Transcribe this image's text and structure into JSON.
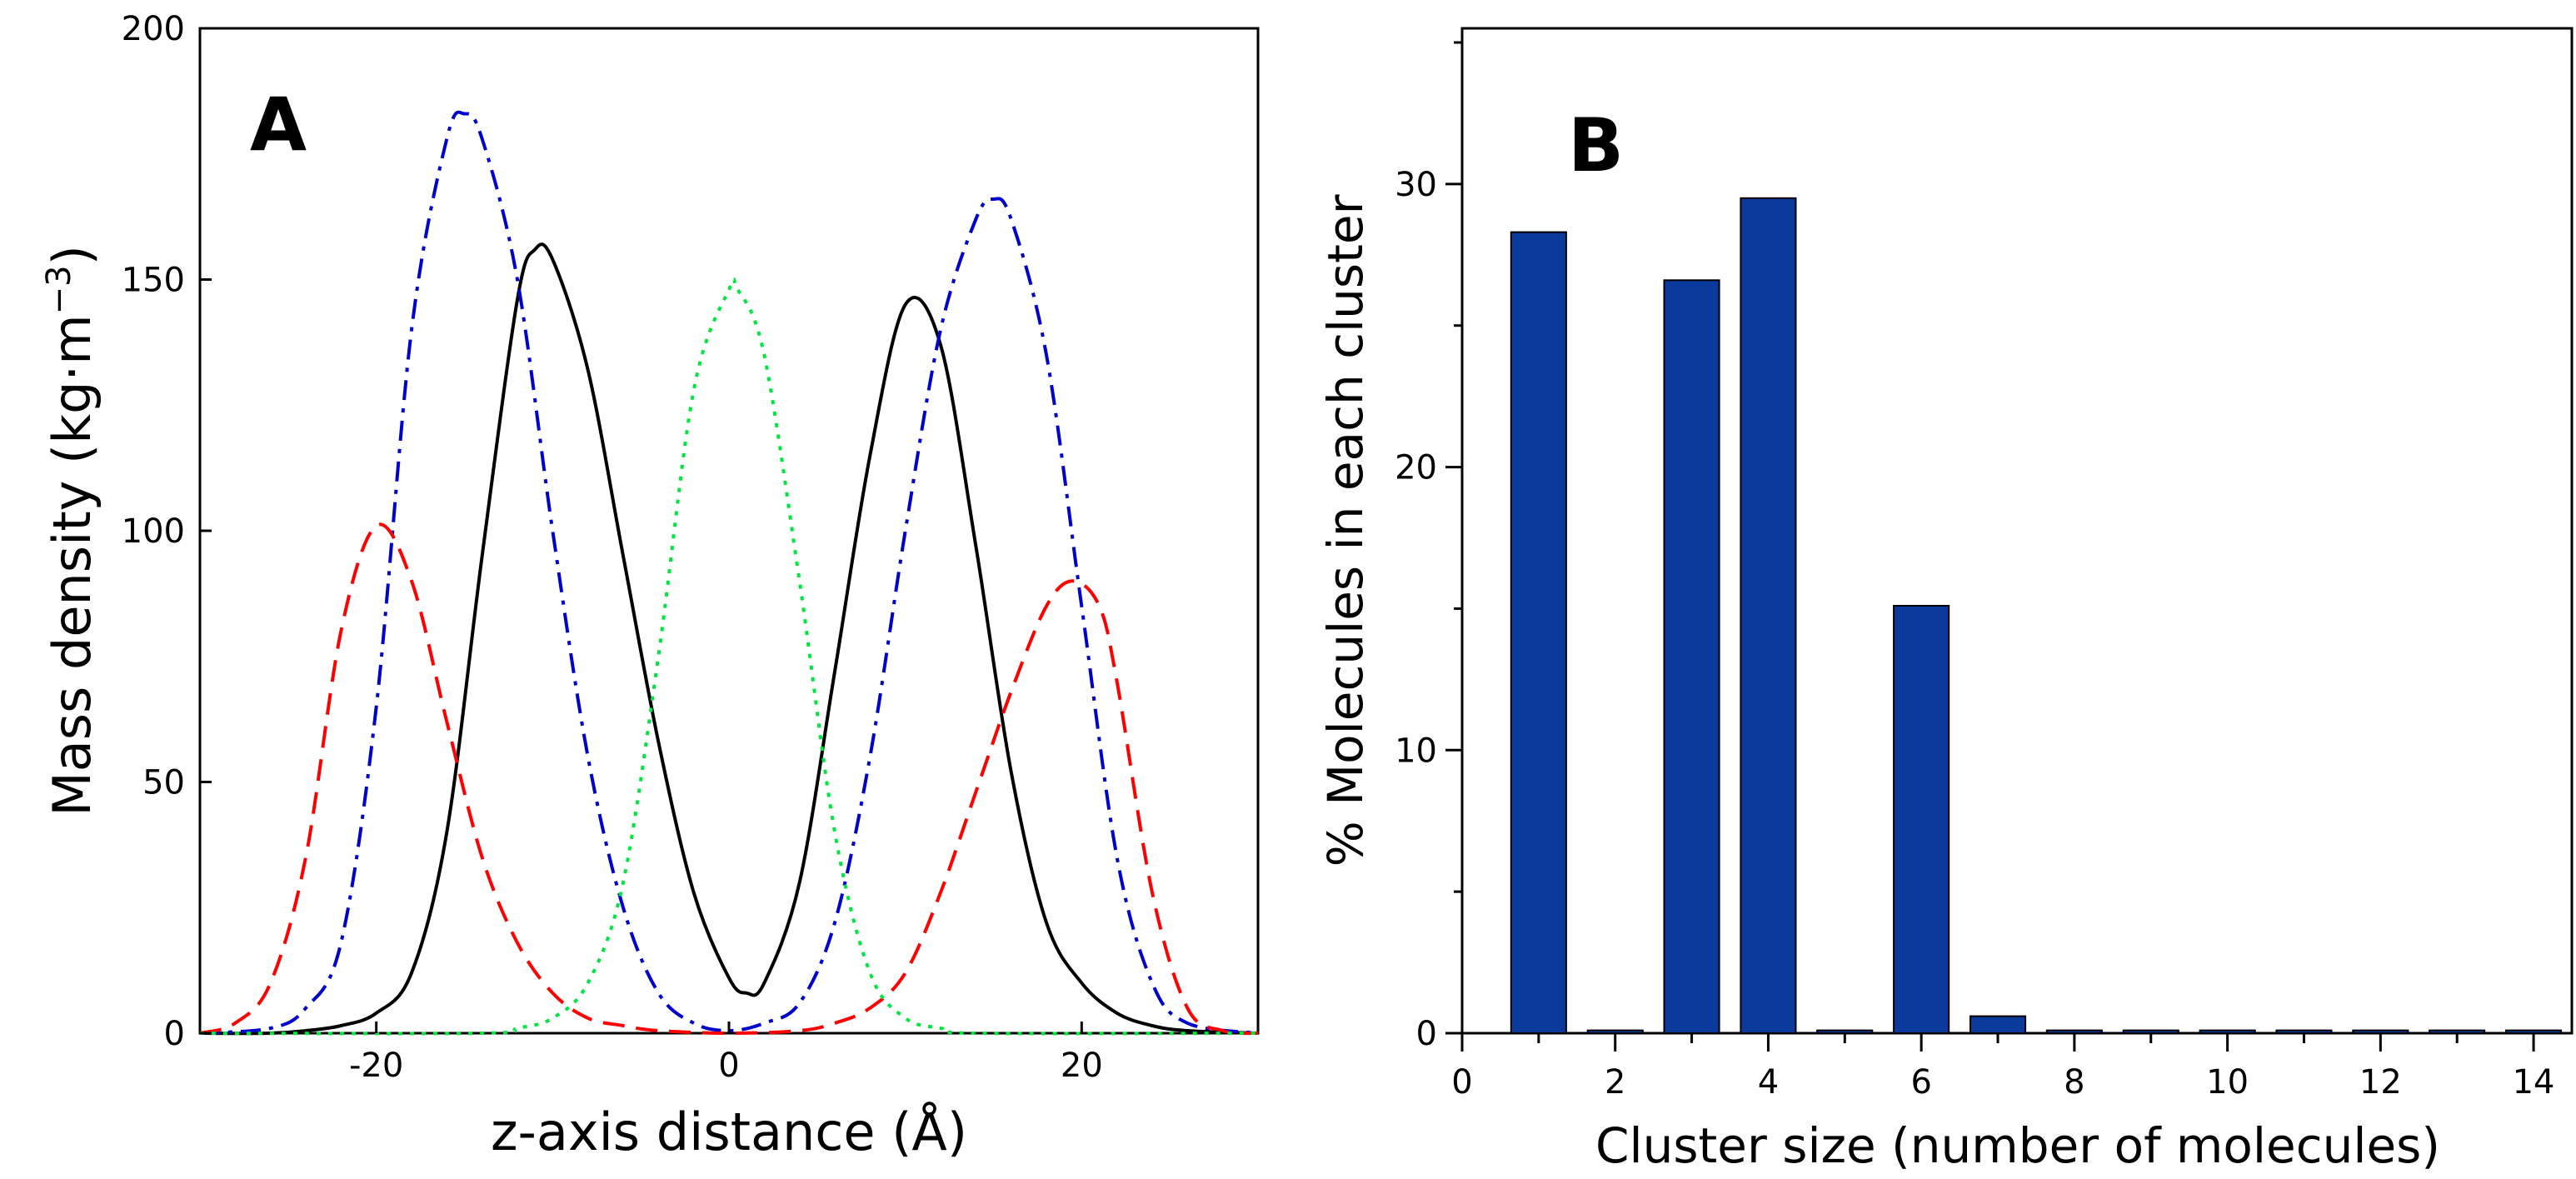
{
  "chart_data": [
    {
      "panel_label": "A",
      "type": "line",
      "xlabel": "z-axis distance (Å)",
      "ylabel": "Mass density (kg·m⁻³)",
      "ylabel_parts": {
        "base": "Mass density (kg·m",
        "sup": "−3",
        "close": ")"
      },
      "xlim": [
        -30,
        30
      ],
      "ylim": [
        0,
        200
      ],
      "x_ticks": [
        -20,
        0,
        20
      ],
      "x_tick_labels": [
        "-20",
        "0",
        "20"
      ],
      "y_ticks": [
        0,
        50,
        100,
        150,
        200
      ],
      "y_tick_labels": [
        "0",
        "50",
        "100",
        "150",
        "200"
      ],
      "grid": false,
      "series": [
        {
          "name": "black-solid",
          "color": "#000000",
          "dash": "solid",
          "x": [
            -30,
            -26,
            -24,
            -22,
            -20,
            -18,
            -16,
            -14,
            -12,
            -11,
            -10,
            -8,
            -6,
            -4,
            -2,
            0,
            1,
            2,
            4,
            6,
            8,
            10,
            12,
            14,
            16,
            18,
            20,
            22,
            24,
            26,
            30
          ],
          "y": [
            0,
            0,
            0.5,
            1.5,
            4,
            12,
            40,
            95,
            146,
            156,
            154,
            132,
            95,
            58,
            28,
            11,
            8,
            10,
            30,
            72,
            115,
            145,
            137,
            97,
            52,
            22,
            10,
            4,
            1.5,
            0.5,
            0
          ]
        },
        {
          "name": "blue-dashdot",
          "color": "#0000cc",
          "dash": "dashdot",
          "x": [
            -30,
            -26,
            -24,
            -22,
            -20,
            -18,
            -16,
            -15,
            -14,
            -12,
            -10,
            -8,
            -6,
            -4,
            -2,
            0,
            2,
            4,
            6,
            8,
            10,
            12,
            14,
            15,
            16,
            18,
            20,
            22,
            24,
            26,
            30
          ],
          "y": [
            0,
            1,
            5,
            18,
            65,
            140,
            178,
            183,
            178,
            150,
            100,
            55,
            25,
            8,
            2,
            0.5,
            2,
            6,
            22,
            55,
            100,
            140,
            162,
            166,
            162,
            135,
            85,
            35,
            10,
            2,
            0
          ]
        },
        {
          "name": "red-dashed",
          "color": "#ff0000",
          "dash": "dashed",
          "x": [
            -30,
            -28,
            -26,
            -24,
            -22,
            -20,
            -18,
            -16,
            -14,
            -12,
            -10,
            -8,
            -6,
            -4,
            0,
            4,
            6,
            8,
            10,
            12,
            14,
            16,
            18,
            19.5,
            21,
            22,
            24,
            26,
            28,
            30
          ],
          "y": [
            0,
            2,
            10,
            35,
            80,
            101,
            90,
            62,
            35,
            18,
            8,
            3,
            1.5,
            0.5,
            0,
            0.5,
            2,
            5,
            12,
            28,
            48,
            68,
            85,
            90,
            85,
            70,
            28,
            5,
            0.5,
            0
          ]
        },
        {
          "name": "green-dotted",
          "color": "#00e640",
          "dash": "dotted",
          "x": [
            -30,
            -14,
            -12,
            -10,
            -8,
            -6,
            -4,
            -2,
            0,
            0.5,
            2,
            4,
            6,
            8,
            10,
            12,
            14,
            30
          ],
          "y": [
            0,
            0,
            1,
            3,
            10,
            30,
            75,
            128,
            148,
            148,
            135,
            90,
            40,
            12,
            3,
            1,
            0,
            0
          ]
        }
      ]
    },
    {
      "panel_label": "B",
      "type": "bar",
      "xlabel": "Cluster size (number of molecules)",
      "ylabel": "% Molecules in each cluster",
      "bar_color": "#0a3a9c",
      "categories": [
        1,
        2,
        3,
        4,
        5,
        6,
        7,
        8,
        9,
        10,
        11,
        12,
        13,
        14
      ],
      "values": [
        28.3,
        0.1,
        26.6,
        29.5,
        0.1,
        15.1,
        0.6,
        0.1,
        0.1,
        0.1,
        0.1,
        0.1,
        0.1,
        0.1
      ],
      "xlim": [
        0,
        14.5
      ],
      "ylim": [
        0,
        35.5
      ],
      "x_ticks": [
        0,
        2,
        4,
        6,
        8,
        10,
        12,
        14
      ],
      "x_tick_labels": [
        "0",
        "2",
        "4",
        "6",
        "8",
        "10",
        "12",
        "14"
      ],
      "y_ticks": [
        0,
        10,
        20,
        30
      ],
      "y_tick_labels": [
        "0",
        "10",
        "20",
        "30"
      ],
      "grid": false
    }
  ]
}
